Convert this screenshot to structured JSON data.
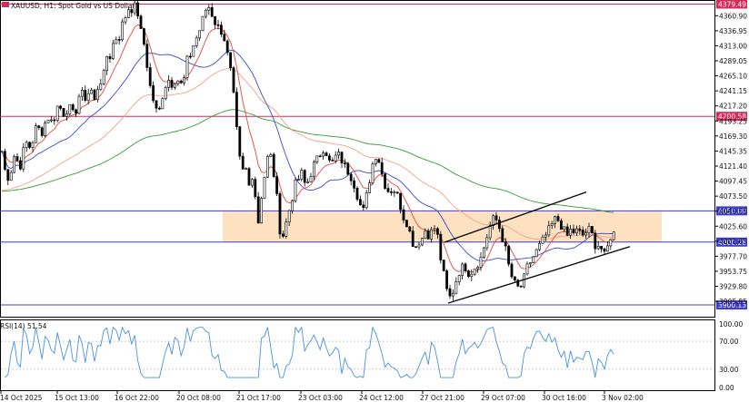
{
  "header": {
    "title": "XAUUSD, H1:  Spot Gold vs US Dollar"
  },
  "rsi_panel": {
    "label": "RSI(14) 51.54"
  },
  "colors": {
    "candle": "#000000",
    "ema_fast": "#e8453c",
    "sma_mid": "#3b47c9",
    "ema_slow": "#f1a08d",
    "ma_long": "#3a9a3a",
    "zone_fill": "#fde1c0",
    "hline_red": "#d62b5a",
    "hline_blue": "#3c3cd6",
    "rsi_line": "#4a90e2",
    "channel": "#000000"
  },
  "chart_data": {
    "type": "candlestick",
    "symbol": "XAUUSD",
    "timeframe": "H1",
    "ylim": [
      3881.4,
      4384.5
    ],
    "y_ticks": [
      "4360.90",
      "4336.95",
      "4313.00",
      "4289.05",
      "4265.10",
      "4241.15",
      "4217.20",
      "4193.25",
      "4169.30",
      "4145.35",
      "4121.40",
      "4097.45",
      "4073.50",
      "4049.55",
      "4025.60",
      "4001.65",
      "3977.70",
      "3953.75",
      "3929.80",
      "3905.85"
    ],
    "x_labels": [
      "14 Oct 2025",
      "15 Oct 13:00",
      "16 Oct 22:00",
      "20 Oct 08:00",
      "21 Oct 17:00",
      "23 Oct 03:00",
      "24 Oct 12:00",
      "27 Oct 21:00",
      "29 Oct 07:00",
      "30 Oct 16:00",
      "3 Nov 02:00"
    ],
    "price_levels": [
      {
        "label": "4379.49",
        "value": 4379.49,
        "type": "line-red"
      },
      {
        "label": "4200.58",
        "value": 4200.58,
        "type": "line-red"
      },
      {
        "label": "4050.00",
        "value": 4050.0,
        "type": "line-blue"
      },
      {
        "label": "4000.28",
        "value": 4000.28,
        "type": "line-blue"
      },
      {
        "label": "3900.13",
        "value": 3900.13,
        "type": "line-blue"
      }
    ],
    "zone": {
      "upper": 4050.0,
      "lower": 4000.28
    },
    "price_path": [
      [
        0,
        4170
      ],
      [
        4,
        4120
      ],
      [
        10,
        4100
      ],
      [
        16,
        4140
      ],
      [
        22,
        4120
      ],
      [
        28,
        4160
      ],
      [
        34,
        4150
      ],
      [
        40,
        4185
      ],
      [
        46,
        4175
      ],
      [
        52,
        4200
      ],
      [
        58,
        4190
      ],
      [
        64,
        4220
      ],
      [
        70,
        4205
      ],
      [
        76,
        4215
      ],
      [
        82,
        4200
      ],
      [
        88,
        4240
      ],
      [
        94,
        4230
      ],
      [
        100,
        4245
      ],
      [
        104,
        4225
      ],
      [
        108,
        4250
      ],
      [
        114,
        4265
      ],
      [
        118,
        4300
      ],
      [
        122,
        4295
      ],
      [
        126,
        4330
      ],
      [
        130,
        4320
      ],
      [
        134,
        4345
      ],
      [
        138,
        4360
      ],
      [
        142,
        4375
      ],
      [
        146,
        4370
      ],
      [
        150,
        4380
      ],
      [
        154,
        4340
      ],
      [
        158,
        4320
      ],
      [
        162,
        4280
      ],
      [
        166,
        4240
      ],
      [
        170,
        4220
      ],
      [
        174,
        4200
      ],
      [
        178,
        4230
      ],
      [
        182,
        4250
      ],
      [
        186,
        4260
      ],
      [
        190,
        4250
      ],
      [
        194,
        4265
      ],
      [
        198,
        4250
      ],
      [
        202,
        4255
      ],
      [
        206,
        4290
      ],
      [
        210,
        4300
      ],
      [
        214,
        4320
      ],
      [
        218,
        4330
      ],
      [
        222,
        4350
      ],
      [
        226,
        4370
      ],
      [
        230,
        4375
      ],
      [
        234,
        4360
      ],
      [
        238,
        4345
      ],
      [
        242,
        4340
      ],
      [
        246,
        4330
      ],
      [
        250,
        4300
      ],
      [
        254,
        4270
      ],
      [
        258,
        4220
      ],
      [
        262,
        4150
      ],
      [
        266,
        4110
      ],
      [
        270,
        4120
      ],
      [
        274,
        4090
      ],
      [
        278,
        4110
      ],
      [
        282,
        4060
      ],
      [
        286,
        4010
      ],
      [
        288,
        4090
      ],
      [
        292,
        4110
      ],
      [
        296,
        4150
      ],
      [
        300,
        4120
      ],
      [
        304,
        4080
      ],
      [
        308,
        4020
      ],
      [
        312,
        4010
      ],
      [
        316,
        4040
      ],
      [
        320,
        4060
      ],
      [
        324,
        4090
      ],
      [
        328,
        4100
      ],
      [
        332,
        4110
      ],
      [
        336,
        4090
      ],
      [
        340,
        4100
      ],
      [
        344,
        4120
      ],
      [
        348,
        4130
      ],
      [
        352,
        4140
      ],
      [
        356,
        4150
      ],
      [
        360,
        4140
      ],
      [
        364,
        4120
      ],
      [
        368,
        4135
      ],
      [
        372,
        4140
      ],
      [
        376,
        4130
      ],
      [
        380,
        4120
      ],
      [
        384,
        4110
      ],
      [
        388,
        4100
      ],
      [
        392,
        4080
      ],
      [
        396,
        4060
      ],
      [
        400,
        4050
      ],
      [
        404,
        4080
      ],
      [
        408,
        4110
      ],
      [
        412,
        4140
      ],
      [
        416,
        4135
      ],
      [
        420,
        4110
      ],
      [
        424,
        4090
      ],
      [
        428,
        4080
      ],
      [
        432,
        4085
      ],
      [
        436,
        4080
      ],
      [
        440,
        4060
      ],
      [
        444,
        4040
      ],
      [
        448,
        4030
      ],
      [
        452,
        4010
      ],
      [
        456,
        3990
      ],
      [
        460,
        4000
      ],
      [
        464,
        4005
      ],
      [
        468,
        4020
      ],
      [
        472,
        4010
      ],
      [
        476,
        4020
      ],
      [
        480,
        4025
      ],
      [
        484,
        3980
      ],
      [
        488,
        3950
      ],
      [
        492,
        3920
      ],
      [
        496,
        3910
      ],
      [
        500,
        3930
      ],
      [
        504,
        3950
      ],
      [
        508,
        3960
      ],
      [
        512,
        3960
      ],
      [
        516,
        3950
      ],
      [
        520,
        3955
      ],
      [
        524,
        3965
      ],
      [
        528,
        3970
      ],
      [
        532,
        3990
      ],
      [
        536,
        4010
      ],
      [
        540,
        4030
      ],
      [
        544,
        4040
      ],
      [
        548,
        4030
      ],
      [
        552,
        4010
      ],
      [
        556,
        3990
      ],
      [
        560,
        3960
      ],
      [
        564,
        3940
      ],
      [
        568,
        3930
      ],
      [
        572,
        3925
      ],
      [
        576,
        3940
      ],
      [
        580,
        3960
      ],
      [
        584,
        3970
      ],
      [
        588,
        3980
      ],
      [
        592,
        3990
      ],
      [
        596,
        4000
      ],
      [
        600,
        4010
      ],
      [
        604,
        4020
      ],
      [
        608,
        4030
      ],
      [
        612,
        4040
      ],
      [
        616,
        4030
      ],
      [
        620,
        4020
      ],
      [
        624,
        4010
      ],
      [
        628,
        4020
      ],
      [
        632,
        4015
      ],
      [
        636,
        4020
      ],
      [
        640,
        4010
      ],
      [
        644,
        4015
      ],
      [
        648,
        4020
      ],
      [
        652,
        4010
      ],
      [
        656,
        3990
      ],
      [
        660,
        4000
      ],
      [
        664,
        3975
      ],
      [
        668,
        3990
      ],
      [
        672,
        4010
      ],
      [
        676,
        4015
      ]
    ],
    "channel": {
      "upper": [
        [
          489,
          4000
        ],
        [
          645,
          4080
        ]
      ],
      "lower": [
        [
          493,
          3903
        ],
        [
          693,
          3993
        ]
      ]
    },
    "rsi": {
      "ylim": [
        0,
        100
      ],
      "ticks": [
        "100.00",
        "70.00",
        "30.00",
        "0.00"
      ],
      "last": 51.54
    }
  }
}
